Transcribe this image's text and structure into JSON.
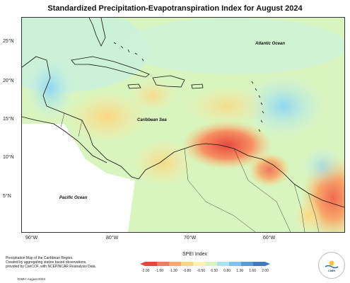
{
  "title": "Standardized Precipitation-Evapotranspiration Index for August 2024",
  "map": {
    "labels": {
      "atlantic": "Atlantic Ocean",
      "caribbean": "Caribbean Sea",
      "pacific": "Pacific Ocean"
    },
    "latitude_ticks": [
      "25°N",
      "20°N",
      "15°N",
      "10°N",
      "5°N"
    ],
    "longitude_ticks": [
      "90°W",
      "80°W",
      "70°W",
      "60°W"
    ]
  },
  "legend": {
    "title": "SPEI Index",
    "ticks": [
      "-2.00",
      "-1.60",
      "-1.30",
      "-0.80",
      "-0.50",
      "0.50",
      "0.80",
      "1.30",
      "1.60",
      "2.00"
    ],
    "colors": [
      "#e04a3c",
      "#f27a5e",
      "#f7a86a",
      "#fbd77f",
      "#fff2b0",
      "#d8f5c0",
      "#a8e5ef",
      "#7ac6ee",
      "#5a9ed8",
      "#3e79c2"
    ]
  },
  "credit": {
    "line1": "Precipitation Map of the Caribbean Region.",
    "line2": "Created by aggregating station based observations,",
    "line3": "provided by CariCOF, with NCEP/NCAR Reanalysis Data.",
    "footer": "CIMH: August 2024"
  },
  "logo": {
    "text": "CIMH"
  }
}
